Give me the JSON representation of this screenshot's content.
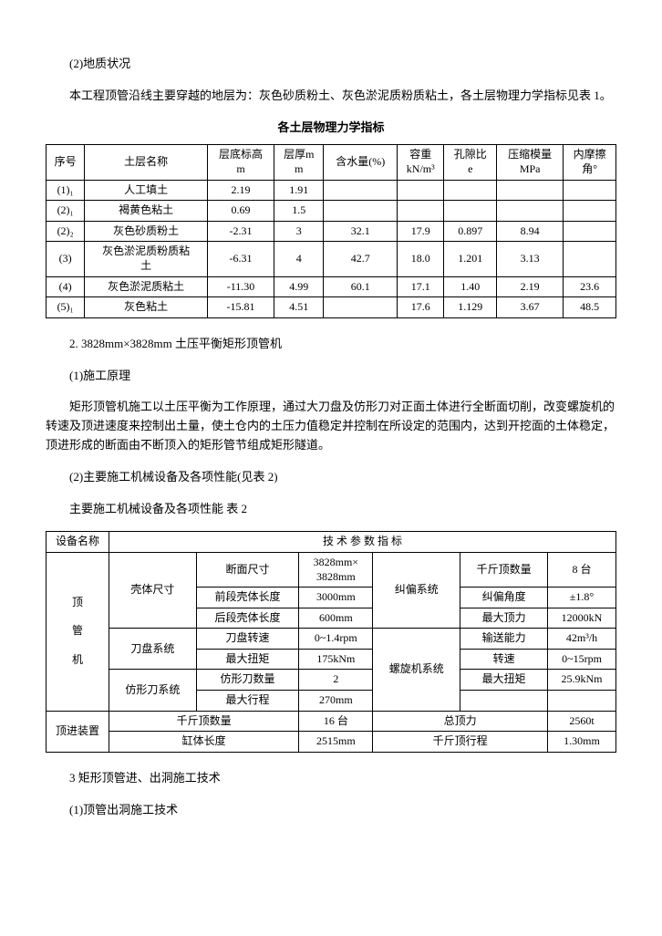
{
  "p1": "(2)地质状况",
  "p2": "本工程顶管沿线主要穿越的地层为：灰色砂质粉土、灰色淤泥质粉质粘土，各土层物理力学指标见表 1。",
  "table1_title": "各土层物理力学指标",
  "table1": {
    "headers": [
      "序号",
      "土层名称",
      "层底标高\nm",
      "层厚m\nm",
      "含水量(%)",
      "容重\nkN/m³",
      "孔隙比\ne",
      "压缩模量\nMPa",
      "内摩擦\n角°"
    ],
    "rows": [
      {
        "cells": [
          "(1)₁",
          "人工填土",
          "2.19",
          "1.91",
          "",
          "",
          "",
          "",
          ""
        ]
      },
      {
        "cells": [
          "(2)₁",
          "褐黄色粘土",
          "0.69",
          "1.5",
          "",
          "",
          "",
          "",
          ""
        ]
      },
      {
        "cells": [
          "(2)₂",
          "灰色砂质粉土",
          "-2.31",
          "3",
          "32.1",
          "17.9",
          "0.897",
          "8.94",
          ""
        ]
      },
      {
        "cells": [
          "(3)",
          "灰色淤泥质粉质粘\n土",
          "-6.31",
          "4",
          "42.7",
          "18.0",
          "1.201",
          "3.13",
          ""
        ]
      },
      {
        "cells": [
          "(4)",
          "灰色淤泥质粘土",
          "-11.30",
          "4.99",
          "60.1",
          "17.1",
          "1.40",
          "2.19",
          "23.6"
        ]
      },
      {
        "cells": [
          "(5)₁",
          "灰色粘土",
          "-15.81",
          "4.51",
          "",
          "17.6",
          "1.129",
          "3.67",
          "48.5"
        ]
      }
    ]
  },
  "p3": "2. 3828mm×3828mm 土压平衡矩形顶管机",
  "p4": "(1)施工原理",
  "p5": "矩形顶管机施工以土压平衡为工作原理，通过大刀盘及仿形刀对正面土体进行全断面切削，改变螺旋机的转速及顶进速度来控制出土量，使土仓内的土压力值稳定并控制在所设定的范围内，达到开挖面的土体稳定，顶进形成的断面由不断顶入的矩形管节组成矩形隧道。",
  "p6": "(2)主要施工机械设备及各项性能(见表 2)",
  "p7": "主要施工机械设备及各项性能  表 2",
  "table2": {
    "header_equip": "设备名称",
    "header_spec": "技 术 参 数 指 标",
    "machine": "顶\n\n管\n\n机",
    "r1c1": "壳体尺寸",
    "r1c2": "断面尺寸",
    "r1c3": "3828mm×\n3828mm",
    "r1c4": "纠偏系统",
    "r1c5": "千斤顶数量",
    "r1c6": "8 台",
    "r2c2": "前段壳体长度",
    "r2c3": "3000mm",
    "r2c5": "纠偏角度",
    "r2c6": "±1.8°",
    "r3c2": "后段壳体长度",
    "r3c3": "600mm",
    "r3c5": "最大顶力",
    "r3c6": "12000kN",
    "r4c1": "刀盘系统",
    "r4c2": "刀盘转速",
    "r4c3": "0~1.4rpm",
    "r4c4": "螺旋机系统",
    "r4c5": "输送能力",
    "r4c6": "42m³/h",
    "r5c2": "最大扭矩",
    "r5c3": "175kNm",
    "r5c5": "转速",
    "r5c6": "0~15rpm",
    "r6c1": "仿形刀系统",
    "r6c2": "仿形刀数量",
    "r6c3": "2",
    "r6c5": "最大扭矩",
    "r6c6": "25.9kNm",
    "r7c2": "最大行程",
    "r7c3": "270mm",
    "r8c0": "顶进装置",
    "r8c1": "千斤顶数量",
    "r8c3": "16 台",
    "r8c4": "总顶力",
    "r8c6": "2560t",
    "r9c1": "缸体长度",
    "r9c3": "2515mm",
    "r9c4": "千斤顶行程",
    "r9c6": "1.30mm"
  },
  "p8": "3  矩形顶管进、出洞施工技术",
  "p9": "(1)顶管出洞施工技术"
}
